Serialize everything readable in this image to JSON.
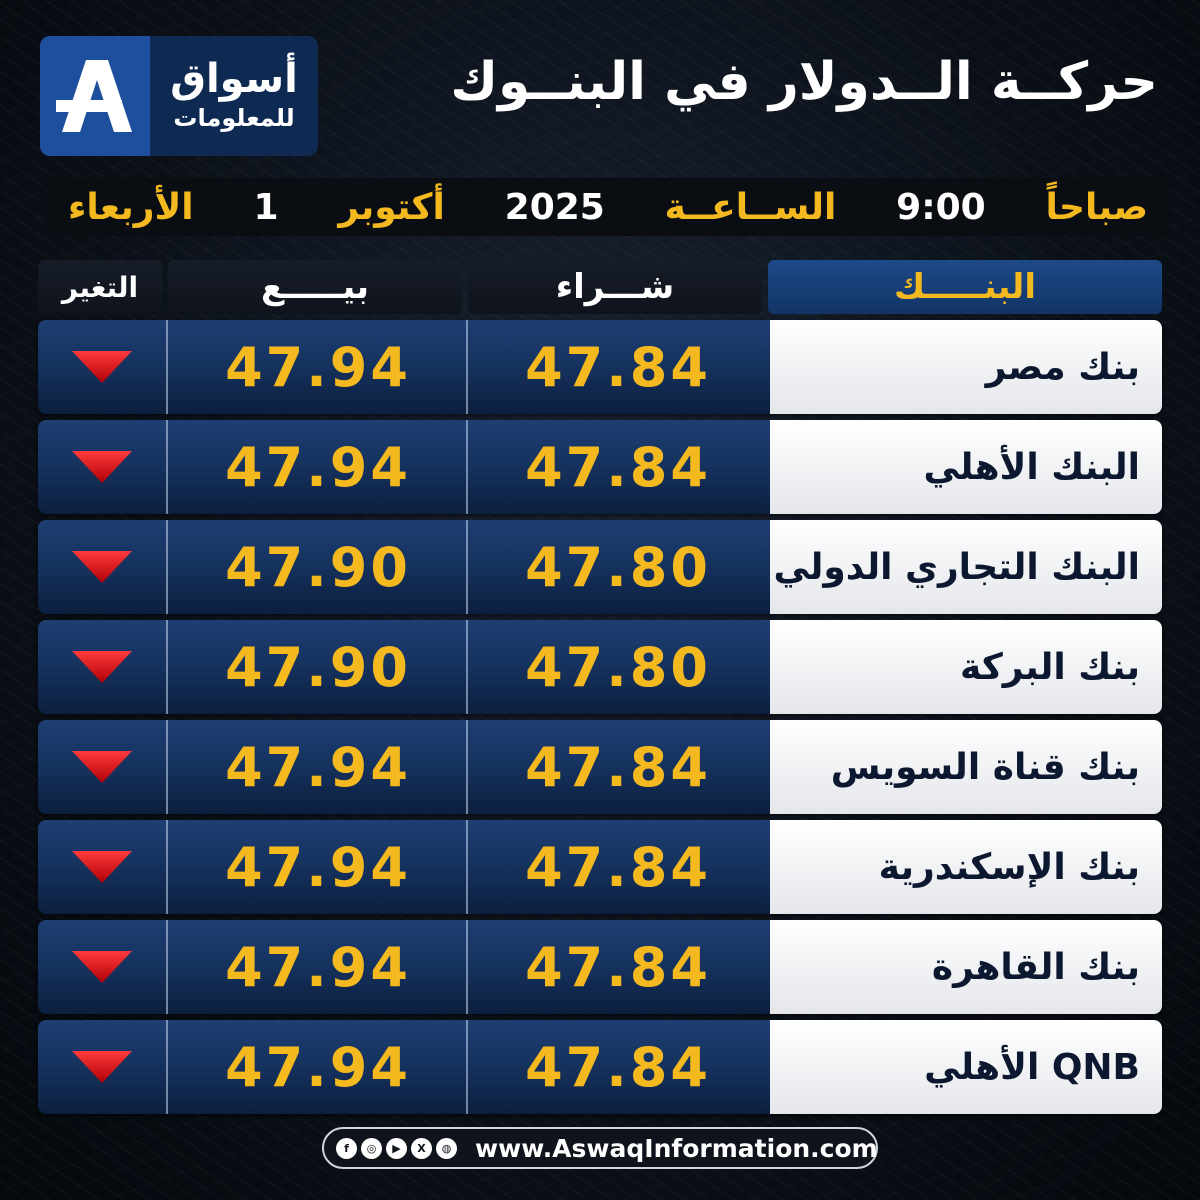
{
  "logo": {
    "line1": "أسواق",
    "line2": "للمعلومات"
  },
  "title": "حركــة الــدولار في البنــوك",
  "date_bar": {
    "day": "الأربعاء",
    "day_num": "1",
    "month": "أكتوبر",
    "year": "2025",
    "time_label": "الســاعــة",
    "time": "9:00",
    "period": "صباحاً"
  },
  "headers": {
    "bank": "البنـــــك",
    "buy": "شـــراء",
    "sell": "بيـــــع",
    "change": "التغير"
  },
  "rows": [
    {
      "bank": "بنك مصر",
      "buy": "47.84",
      "sell": "47.94",
      "change": "down"
    },
    {
      "bank": "البنك الأهلي",
      "buy": "47.84",
      "sell": "47.94",
      "change": "down"
    },
    {
      "bank": "البنك التجاري الدولي",
      "buy": "47.80",
      "sell": "47.90",
      "change": "down"
    },
    {
      "bank": "بنك البركة",
      "buy": "47.80",
      "sell": "47.90",
      "change": "down"
    },
    {
      "bank": "بنك قناة السويس",
      "buy": "47.84",
      "sell": "47.94",
      "change": "down"
    },
    {
      "bank": "بنك الإسكندرية",
      "buy": "47.84",
      "sell": "47.94",
      "change": "down"
    },
    {
      "bank": "بنك القاهرة",
      "buy": "47.84",
      "sell": "47.94",
      "change": "down"
    },
    {
      "bank": "QNB الأهلي",
      "buy": "47.84",
      "sell": "47.94",
      "change": "down"
    }
  ],
  "footer": {
    "url": "www.AswaqInformation.com",
    "icons": [
      "facebook-icon",
      "instagram-icon",
      "youtube-icon",
      "x-icon",
      "globe-icon"
    ]
  },
  "colors": {
    "accent": "#f5b920",
    "down": "#e0141a",
    "row_blue": "#163360"
  }
}
